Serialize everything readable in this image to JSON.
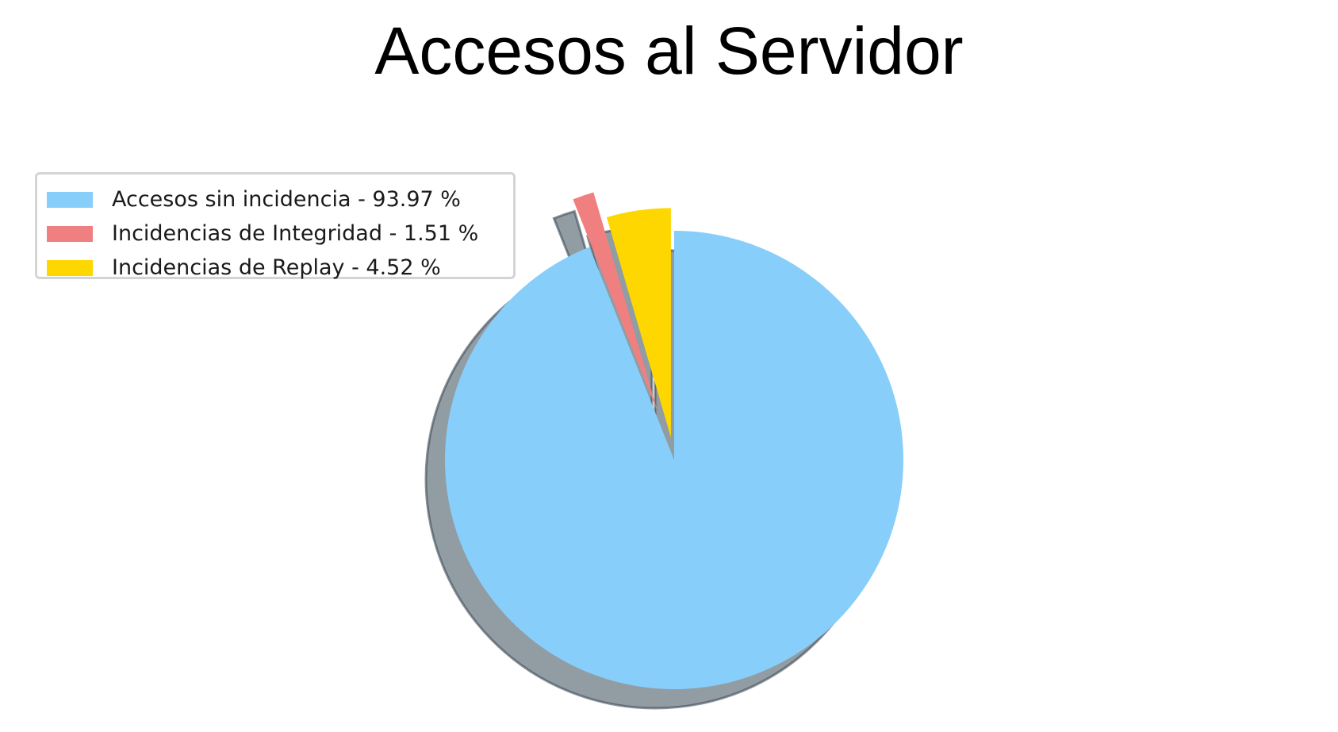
{
  "chart_data": {
    "type": "pie",
    "title": "Accesos al Servidor",
    "start_angle_deg": 90,
    "direction": "clockwise",
    "shadow": true,
    "legend_position": "upper-left",
    "slices": [
      {
        "label": "Accesos sin incidencia - 93.97 %",
        "value": 93.97,
        "color": "#87CEFA",
        "exploded": false
      },
      {
        "label": "Incidencias de Integridad - 1.51 %",
        "value": 1.51,
        "color": "#F08080",
        "exploded": true
      },
      {
        "label": "Incidencias de Replay - 4.52 %",
        "value": 4.52,
        "color": "#FFD700",
        "exploded": true
      }
    ]
  }
}
